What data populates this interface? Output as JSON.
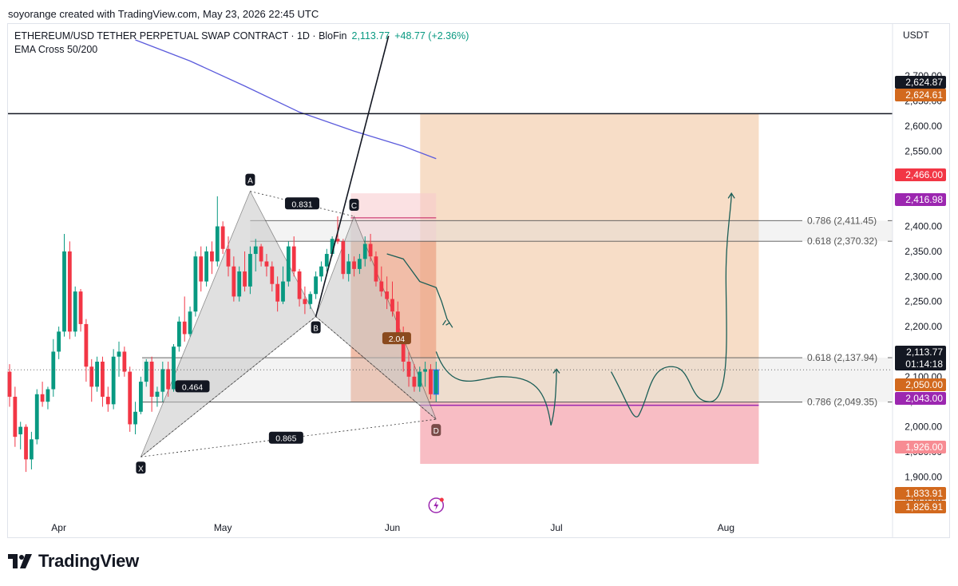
{
  "header": {
    "credit": "soyorange created with TradingView.com, May 23, 2026 22:45 UTC",
    "symbol": "ETHEREUM/USD TETHER PERPETUAL SWAP CONTRACT · 1D · BloFin",
    "last_price": "2,113.77",
    "change": "+48.77 (+2.36%)",
    "indicator": "EMA Cross 50/200",
    "currency": "USDT"
  },
  "footer": {
    "brand": "TradingView"
  },
  "colors": {
    "up": "#089981",
    "down": "#f23645",
    "ema": "#5b5bdc",
    "target_zone": "#f6d7bd",
    "stop_zone": "#f7b6be",
    "pattern_fill": "#c8c8c8"
  },
  "chart_data": {
    "type": "candlestick",
    "title": "ETHEREUM/USD TETHER PERPETUAL SWAP CONTRACT · 1D · BloFin",
    "y_axis": {
      "unit": "USDT",
      "range": [
        1805,
        2780
      ],
      "ticks": [
        "1,850.00",
        "1,900.00",
        "1,950.00",
        "2,000.00",
        "2,050.00",
        "2,100.00",
        "2,150.00",
        "2,200.00",
        "2,250.00",
        "2,300.00",
        "2,350.00",
        "2,400.00",
        "2,450.00",
        "2,500.00",
        "2,550.00",
        "2,600.00",
        "2,650.00",
        "2,700.00"
      ]
    },
    "x_axis": {
      "ticks": [
        "Apr",
        "May",
        "Jun",
        "Jul",
        "Aug"
      ],
      "tick_days": [
        9,
        39,
        70,
        100,
        131
      ]
    },
    "grid": false,
    "candles": [
      {
        "d": 0,
        "o": 2110,
        "h": 2125,
        "l": 2040,
        "c": 2060
      },
      {
        "d": 1,
        "o": 2060,
        "h": 2080,
        "l": 1960,
        "c": 1980
      },
      {
        "d": 2,
        "o": 1985,
        "h": 2010,
        "l": 1955,
        "c": 2000
      },
      {
        "d": 3,
        "o": 2000,
        "h": 2005,
        "l": 1910,
        "c": 1935
      },
      {
        "d": 4,
        "o": 1935,
        "h": 1990,
        "l": 1915,
        "c": 1975
      },
      {
        "d": 5,
        "o": 1975,
        "h": 2075,
        "l": 1965,
        "c": 2065
      },
      {
        "d": 6,
        "o": 2065,
        "h": 2090,
        "l": 2040,
        "c": 2050
      },
      {
        "d": 7,
        "o": 2050,
        "h": 2080,
        "l": 2035,
        "c": 2075
      },
      {
        "d": 8,
        "o": 2075,
        "h": 2175,
        "l": 2060,
        "c": 2150
      },
      {
        "d": 9,
        "o": 2150,
        "h": 2200,
        "l": 2135,
        "c": 2190
      },
      {
        "d": 10,
        "o": 2190,
        "h": 2385,
        "l": 2180,
        "c": 2350
      },
      {
        "d": 11,
        "o": 2350,
        "h": 2370,
        "l": 2175,
        "c": 2190
      },
      {
        "d": 12,
        "o": 2190,
        "h": 2280,
        "l": 2180,
        "c": 2270
      },
      {
        "d": 13,
        "o": 2270,
        "h": 2275,
        "l": 2190,
        "c": 2205
      },
      {
        "d": 14,
        "o": 2205,
        "h": 2215,
        "l": 2090,
        "c": 2120
      },
      {
        "d": 15,
        "o": 2120,
        "h": 2135,
        "l": 2050,
        "c": 2080
      },
      {
        "d": 16,
        "o": 2080,
        "h": 2140,
        "l": 2070,
        "c": 2130
      },
      {
        "d": 17,
        "o": 2130,
        "h": 2140,
        "l": 2040,
        "c": 2060
      },
      {
        "d": 18,
        "o": 2060,
        "h": 2080,
        "l": 2030,
        "c": 2045
      },
      {
        "d": 19,
        "o": 2045,
        "h": 2155,
        "l": 2035,
        "c": 2140
      },
      {
        "d": 20,
        "o": 2140,
        "h": 2170,
        "l": 2100,
        "c": 2150
      },
      {
        "d": 21,
        "o": 2150,
        "h": 2160,
        "l": 2100,
        "c": 2110
      },
      {
        "d": 22,
        "o": 2110,
        "h": 2120,
        "l": 1990,
        "c": 2005
      },
      {
        "d": 23,
        "o": 2005,
        "h": 2050,
        "l": 1985,
        "c": 2030
      },
      {
        "d": 24,
        "o": 2030,
        "h": 2100,
        "l": 2025,
        "c": 2090
      },
      {
        "d": 25,
        "o": 2090,
        "h": 2135,
        "l": 2080,
        "c": 2130
      },
      {
        "d": 26,
        "o": 2130,
        "h": 2140,
        "l": 2030,
        "c": 2060
      },
      {
        "d": 27,
        "o": 2060,
        "h": 2080,
        "l": 2040,
        "c": 2070
      },
      {
        "d": 28,
        "o": 2070,
        "h": 2130,
        "l": 2050,
        "c": 2115
      },
      {
        "d": 29,
        "o": 2115,
        "h": 2130,
        "l": 2060,
        "c": 2075
      },
      {
        "d": 30,
        "o": 2075,
        "h": 2165,
        "l": 2070,
        "c": 2160
      },
      {
        "d": 31,
        "o": 2160,
        "h": 2220,
        "l": 2150,
        "c": 2210
      },
      {
        "d": 32,
        "o": 2210,
        "h": 2260,
        "l": 2170,
        "c": 2185
      },
      {
        "d": 33,
        "o": 2185,
        "h": 2240,
        "l": 2180,
        "c": 2230
      },
      {
        "d": 34,
        "o": 2230,
        "h": 2350,
        "l": 2220,
        "c": 2340
      },
      {
        "d": 35,
        "o": 2340,
        "h": 2360,
        "l": 2270,
        "c": 2290
      },
      {
        "d": 36,
        "o": 2290,
        "h": 2360,
        "l": 2280,
        "c": 2350
      },
      {
        "d": 37,
        "o": 2350,
        "h": 2370,
        "l": 2305,
        "c": 2330
      },
      {
        "d": 38,
        "o": 2330,
        "h": 2460,
        "l": 2320,
        "c": 2400
      },
      {
        "d": 39,
        "o": 2400,
        "h": 2410,
        "l": 2345,
        "c": 2355
      },
      {
        "d": 40,
        "o": 2355,
        "h": 2380,
        "l": 2300,
        "c": 2320
      },
      {
        "d": 41,
        "o": 2320,
        "h": 2340,
        "l": 2250,
        "c": 2260
      },
      {
        "d": 42,
        "o": 2260,
        "h": 2320,
        "l": 2250,
        "c": 2310
      },
      {
        "d": 43,
        "o": 2310,
        "h": 2350,
        "l": 2270,
        "c": 2280
      },
      {
        "d": 44,
        "o": 2280,
        "h": 2360,
        "l": 2265,
        "c": 2345
      },
      {
        "d": 45,
        "o": 2345,
        "h": 2375,
        "l": 2310,
        "c": 2360
      },
      {
        "d": 46,
        "o": 2360,
        "h": 2365,
        "l": 2320,
        "c": 2330
      },
      {
        "d": 47,
        "o": 2330,
        "h": 2345,
        "l": 2300,
        "c": 2320
      },
      {
        "d": 48,
        "o": 2320,
        "h": 2330,
        "l": 2270,
        "c": 2285
      },
      {
        "d": 49,
        "o": 2285,
        "h": 2300,
        "l": 2230,
        "c": 2250
      },
      {
        "d": 50,
        "o": 2250,
        "h": 2320,
        "l": 2245,
        "c": 2290
      },
      {
        "d": 51,
        "o": 2290,
        "h": 2370,
        "l": 2280,
        "c": 2360
      },
      {
        "d": 52,
        "o": 2360,
        "h": 2380,
        "l": 2300,
        "c": 2310
      },
      {
        "d": 53,
        "o": 2310,
        "h": 2315,
        "l": 2240,
        "c": 2255
      },
      {
        "d": 54,
        "o": 2255,
        "h": 2280,
        "l": 2225,
        "c": 2245
      },
      {
        "d": 55,
        "o": 2245,
        "h": 2270,
        "l": 2235,
        "c": 2265
      },
      {
        "d": 56,
        "o": 2265,
        "h": 2310,
        "l": 2255,
        "c": 2300
      },
      {
        "d": 57,
        "o": 2300,
        "h": 2330,
        "l": 2290,
        "c": 2320
      },
      {
        "d": 58,
        "o": 2320,
        "h": 2355,
        "l": 2310,
        "c": 2345
      },
      {
        "d": 59,
        "o": 2345,
        "h": 2380,
        "l": 2340,
        "c": 2375
      },
      {
        "d": 60,
        "o": 2375,
        "h": 2420,
        "l": 2365,
        "c": 2370
      },
      {
        "d": 61,
        "o": 2370,
        "h": 2375,
        "l": 2295,
        "c": 2305
      },
      {
        "d": 62,
        "o": 2305,
        "h": 2345,
        "l": 2290,
        "c": 2330
      },
      {
        "d": 63,
        "o": 2330,
        "h": 2340,
        "l": 2300,
        "c": 2315
      },
      {
        "d": 64,
        "o": 2315,
        "h": 2345,
        "l": 2305,
        "c": 2335
      },
      {
        "d": 65,
        "o": 2335,
        "h": 2380,
        "l": 2320,
        "c": 2365
      },
      {
        "d": 66,
        "o": 2365,
        "h": 2385,
        "l": 2330,
        "c": 2340
      },
      {
        "d": 67,
        "o": 2340,
        "h": 2350,
        "l": 2280,
        "c": 2290
      },
      {
        "d": 68,
        "o": 2290,
        "h": 2320,
        "l": 2260,
        "c": 2270
      },
      {
        "d": 69,
        "o": 2270,
        "h": 2300,
        "l": 2235,
        "c": 2255
      },
      {
        "d": 70,
        "o": 2255,
        "h": 2290,
        "l": 2220,
        "c": 2230
      },
      {
        "d": 71,
        "o": 2230,
        "h": 2250,
        "l": 2170,
        "c": 2185
      },
      {
        "d": 72,
        "o": 2185,
        "h": 2200,
        "l": 2110,
        "c": 2130
      },
      {
        "d": 73,
        "o": 2130,
        "h": 2150,
        "l": 2080,
        "c": 2100
      },
      {
        "d": 74,
        "o": 2100,
        "h": 2125,
        "l": 2070,
        "c": 2080
      },
      {
        "d": 75,
        "o": 2080,
        "h": 2120,
        "l": 2070,
        "c": 2110
      },
      {
        "d": 76,
        "o": 2110,
        "h": 2130,
        "l": 2080,
        "c": 2115
      },
      {
        "d": 77,
        "o": 2115,
        "h": 2125,
        "l": 2055,
        "c": 2065
      },
      {
        "d": 78,
        "o": 2065,
        "h": 2130,
        "l": 2050,
        "c": 2113.77
      }
    ],
    "ema_200": [
      [
        23,
        2772
      ],
      [
        33,
        2730
      ],
      [
        43,
        2680
      ],
      [
        53,
        2628
      ],
      [
        63,
        2590
      ],
      [
        72,
        2560
      ],
      [
        78,
        2535
      ]
    ],
    "harmonic_pattern": {
      "points": [
        {
          "label": "X",
          "d": 24,
          "p": 1940
        },
        {
          "label": "A",
          "d": 44,
          "p": 2470
        },
        {
          "label": "B",
          "d": 56,
          "p": 2220
        },
        {
          "label": "C",
          "d": 63,
          "p": 2420
        },
        {
          "label": "D",
          "d": 78,
          "p": 2015
        }
      ],
      "ratios": [
        {
          "text": "0.831",
          "from": "AB",
          "role": "XA retracement"
        },
        {
          "text": "0.464",
          "from": "XB"
        },
        {
          "text": "2.04",
          "from": "CD"
        },
        {
          "text": "0.865",
          "from": "XD"
        }
      ]
    },
    "fib_levels": [
      {
        "ratio": "0.786",
        "value": 2411.45,
        "label": "0.786 (2,411.45)"
      },
      {
        "ratio": "0.618",
        "value": 2370.32,
        "label": "0.618 (2,370.32)"
      },
      {
        "ratio": "0.618",
        "value": 2137.94,
        "label": "0.618 (2,137.94)"
      },
      {
        "ratio": "0.786",
        "value": 2049.35,
        "label": "0.786 (2,049.35)"
      }
    ],
    "horizontal_line": 2624.87,
    "position": {
      "entry": 2050.0,
      "target": 2624.61,
      "stop": 1926.0,
      "start_day": 78,
      "end_day": 137
    },
    "price_labels": [
      {
        "value": "2,624.87",
        "kind": "line"
      },
      {
        "value": "2,624.61",
        "kind": "target"
      },
      {
        "value": "2,466.00",
        "kind": "stop-red"
      },
      {
        "value": "2,416.98",
        "kind": "purple"
      },
      {
        "value": "2,113.77",
        "kind": "last",
        "sub": "01:14:18"
      },
      {
        "value": "2,050.00",
        "kind": "entry"
      },
      {
        "value": "2,043.00",
        "kind": "purple"
      },
      {
        "value": "1,926.00",
        "kind": "stop"
      },
      {
        "value": "1,833.91",
        "kind": "orange"
      },
      {
        "value": "1,826.91",
        "kind": "orange"
      }
    ]
  }
}
